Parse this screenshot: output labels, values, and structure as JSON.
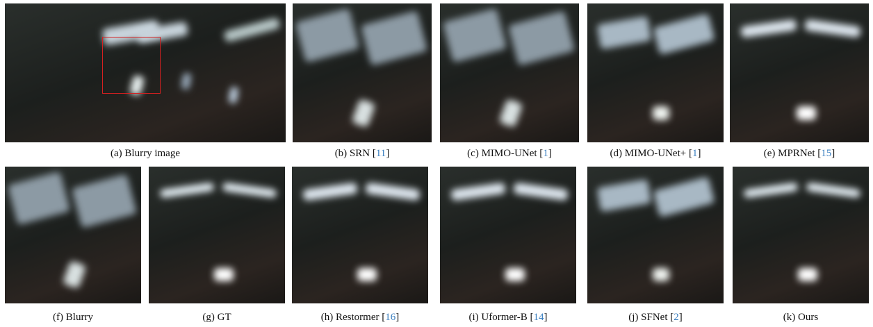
{
  "panels": [
    {
      "caption": "(a) Blurry image"
    },
    {
      "caption": "(b) SRN [",
      "ref": "11",
      "close": "]"
    },
    {
      "caption": "(c) MIMO-UNet [",
      "ref": "1",
      "close": "]"
    },
    {
      "caption": "(d) MIMO-UNet+ [",
      "ref": "1",
      "close": "]"
    },
    {
      "caption": "(e) MPRNet [",
      "ref": "15",
      "close": "]"
    },
    {
      "caption": "(f) Blurry"
    },
    {
      "caption": "(g) GT"
    },
    {
      "caption": "(h) Restormer [",
      "ref": "16",
      "close": "]"
    },
    {
      "caption": "(i) Uformer-B [",
      "ref": "14",
      "close": "]"
    },
    {
      "caption": "(j) SFNet [",
      "ref": "2",
      "close": "]"
    },
    {
      "caption": "(k) Ours"
    }
  ]
}
